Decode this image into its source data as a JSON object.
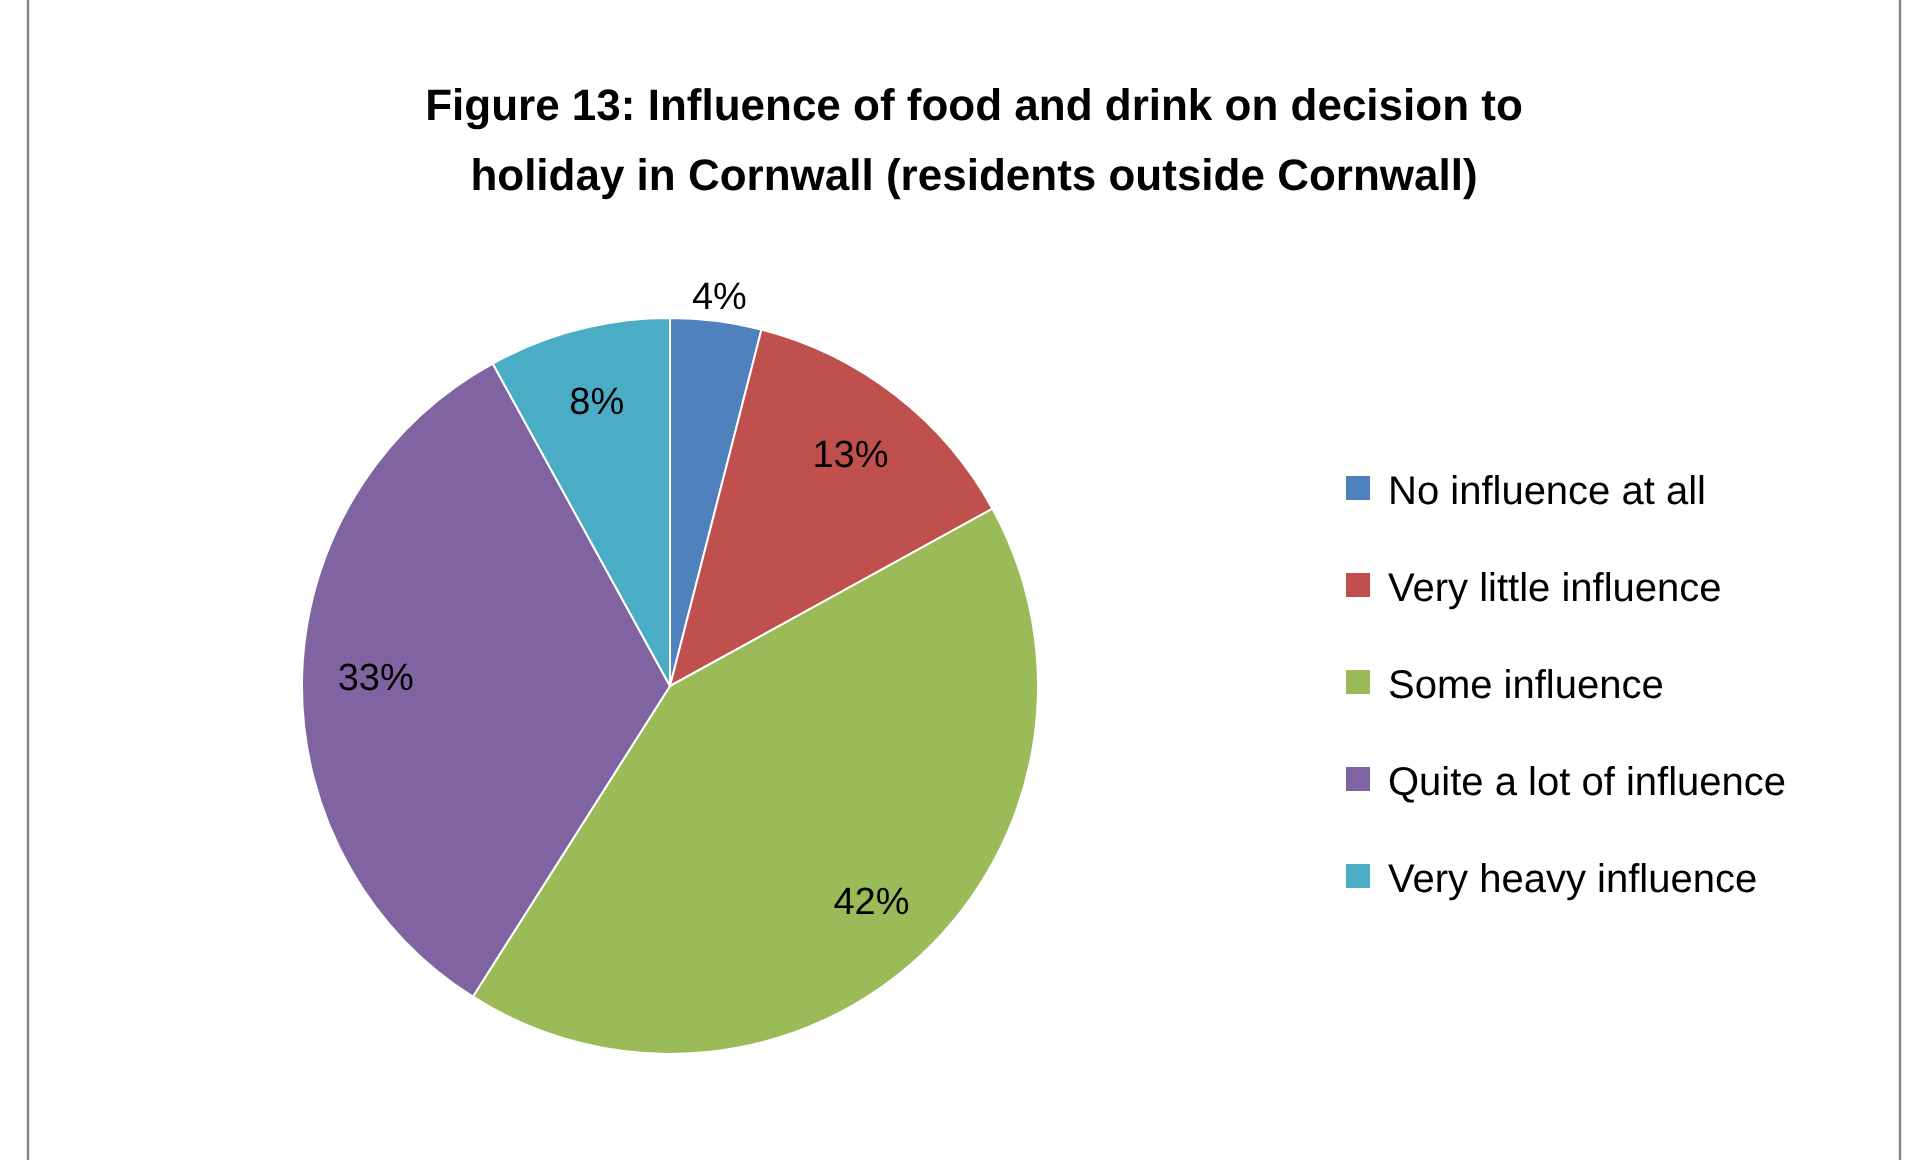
{
  "chart_data": {
    "type": "pie",
    "title": "Figure 13: Influence of food and drink on decision to holiday in Cornwall (residents outside Cornwall)",
    "categories": [
      "No influence at all",
      "Very little influence",
      "Some influence",
      "Quite a lot of influence",
      "Very heavy influence"
    ],
    "values": [
      4,
      13,
      42,
      33,
      8
    ],
    "value_labels": [
      "4%",
      "13%",
      "42%",
      "33%",
      "8%"
    ],
    "colors": [
      "#4f81bd",
      "#c0504d",
      "#9bbb59",
      "#8064a2",
      "#4bacc6"
    ],
    "legend": "right"
  }
}
